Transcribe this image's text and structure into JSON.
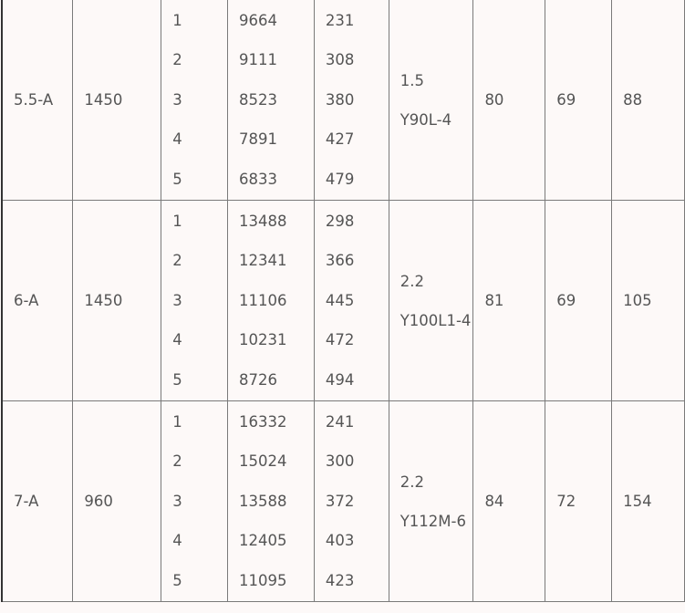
{
  "rows": [
    {
      "model": "5.5-A",
      "speed": "1450",
      "positions": [
        "1",
        "2",
        "3",
        "4",
        "5"
      ],
      "flows": [
        "9664",
        "9111",
        "8523",
        "7891",
        "6833"
      ],
      "pressures": [
        "231",
        "308",
        "380",
        "427",
        "479"
      ],
      "power": "1.5",
      "motor": "Y90L-4",
      "c7": "80",
      "c8": "69",
      "c9": "88"
    },
    {
      "model": "6-A",
      "speed": "1450",
      "positions": [
        "1",
        "2",
        "3",
        "4",
        "5"
      ],
      "flows": [
        "13488",
        "12341",
        "11106",
        "10231",
        "8726"
      ],
      "pressures": [
        "298",
        "366",
        "445",
        "472",
        "494"
      ],
      "power": "2.2",
      "motor": "Y100L1-4",
      "c7": "81",
      "c8": "69",
      "c9": "105"
    },
    {
      "model": "7-A",
      "speed": "960",
      "positions": [
        "1",
        "2",
        "3",
        "4",
        "5"
      ],
      "flows": [
        "16332",
        "15024",
        "13588",
        "12405",
        "11095"
      ],
      "pressures": [
        "241",
        "300",
        "372",
        "403",
        "423"
      ],
      "power": "2.2",
      "motor": "Y112M-6",
      "c7": "84",
      "c8": "72",
      "c9": "154"
    }
  ]
}
